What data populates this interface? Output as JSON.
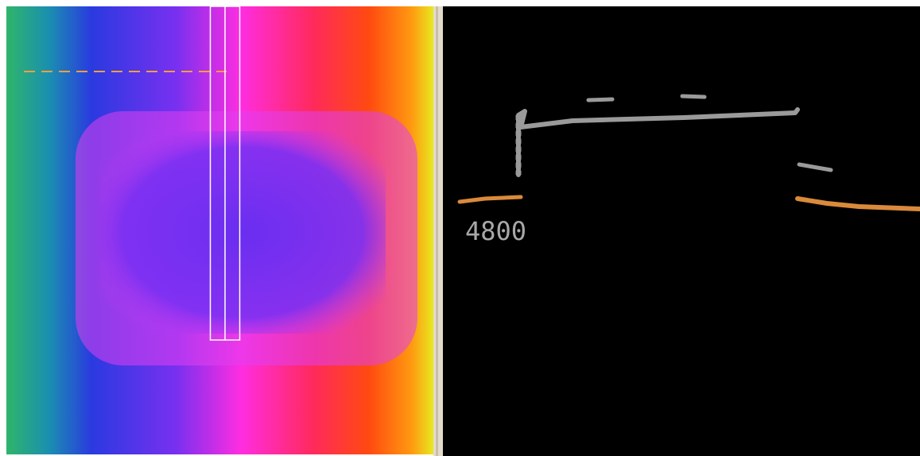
{
  "profile_view": {
    "label": "4800"
  }
}
